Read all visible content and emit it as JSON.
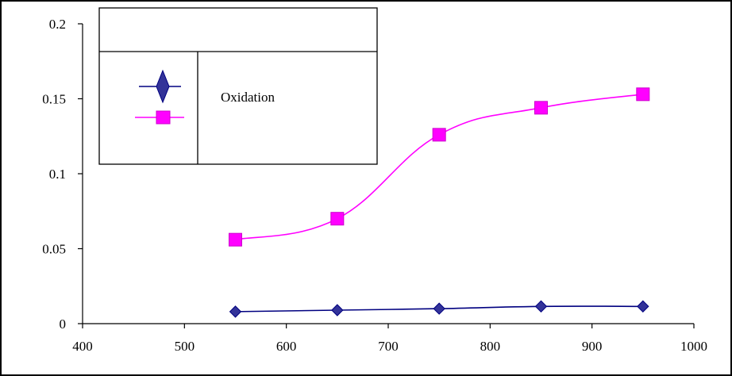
{
  "chart_data": {
    "type": "line",
    "title": "",
    "xlabel": "",
    "ylabel": "",
    "xlim": [
      400,
      1000
    ],
    "ylim": [
      0,
      0.2
    ],
    "x_ticks": [
      400,
      500,
      600,
      700,
      800,
      900,
      1000
    ],
    "y_ticks": [
      0,
      0.05,
      0.1,
      0.15,
      0.2
    ],
    "y_tick_labels": [
      "0",
      "0.05",
      "0.1",
      "0.15",
      "0.2"
    ],
    "grid": false,
    "legend_position": "top-left",
    "legend_label": "Oxidation",
    "series": [
      {
        "x": [
          550,
          650,
          750,
          850,
          950
        ],
        "y": [
          0.008,
          0.009,
          0.01,
          0.0115,
          0.0115
        ],
        "color": "#000080",
        "marker": "diamond",
        "marker_color": "#333399"
      },
      {
        "x": [
          550,
          650,
          750,
          850,
          950
        ],
        "y": [
          0.056,
          0.07,
          0.126,
          0.144,
          0.153
        ],
        "color": "#FF00FF",
        "marker": "square",
        "marker_color": "#FF00FF"
      }
    ]
  }
}
